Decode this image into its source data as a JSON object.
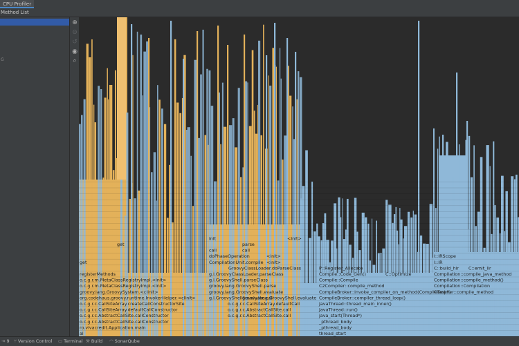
{
  "header": {
    "tab_label": "CPU Profiler",
    "subtab_label": "Method List"
  },
  "left_panel": {
    "mark": "G"
  },
  "toolstrip": {
    "icons": [
      "zoom-in-icon",
      "zoom-out-icon",
      "zoom-reset-icon",
      "eye-icon",
      "search-icon"
    ]
  },
  "colors": {
    "user_code": "#e3b15a",
    "native": "#8fb8d8",
    "background": "#2b2b2b",
    "selection": "#2f65ca"
  },
  "flame": {
    "labels": [
      {
        "text": "get"
      },
      {
        "text": "get"
      },
      {
        "text": "registerMethods"
      },
      {
        "text": "o.c.g.r.m.MetaClassRegistryImpl.<init>"
      },
      {
        "text": "o.c.g.r.m.MetaClassRegistryImpl.<init>"
      },
      {
        "text": "groovy.lang.GroovySystem.<clinit>"
      },
      {
        "text": "org.codehaus.groovy.runtime.InvokerHelper.<clinit>"
      },
      {
        "text": "o.c.g.r.c.CallSiteArray.createCallConstructorSite"
      },
      {
        "text": "o.c.g.r.c.CallSiteArray.defaultCallConstructor"
      },
      {
        "text": "o.c.g.r.c.AbstractCallSite.callConstructor"
      },
      {
        "text": "o.c.g.r.c.AbstractCallSite.callConstructor"
      },
      {
        "text": "ro.vivacredit.Application.main"
      },
      {
        "text": "init"
      },
      {
        "text": "call"
      },
      {
        "text": "parse"
      },
      {
        "text": "call"
      },
      {
        "text": "<init>"
      },
      {
        "text": "doPhaseOperation"
      },
      {
        "text": "<init>"
      },
      {
        "text": "<init>"
      },
      {
        "text": "CompilationUnit.compile"
      },
      {
        "text": "GroovyClassLoader.doParseClass"
      },
      {
        "text": "g.l.GroovyClassLoader.parseClass"
      },
      {
        "text": "g.l.GroovyShell.parseClass"
      },
      {
        "text": "groovy.lang.GroovyShell.parse"
      },
      {
        "text": "groovy.lang.GroovyShell.evaluate"
      },
      {
        "text": "groovy.lang.GroovyShell.evaluate"
      },
      {
        "text": "g.l.GroovyShell$evaluate.call"
      },
      {
        "text": "o.c.g.r.c.CallSiteArray.defaultCall"
      },
      {
        "text": "o.c.g.r.c.AbstractCallSite.call"
      },
      {
        "text": "o.c.g.r.c.AbstractCallSite.call"
      },
      {
        "text": "P::Register_Allocate"
      },
      {
        "text": "Compile::Code_Gen()"
      },
      {
        "text": "C::Optimize"
      },
      {
        "text": "Compile::Compile"
      },
      {
        "text": "C2Compiler::compile_method"
      },
      {
        "text": "CompileBroker::invoke_compiler_on_method(CompileTask*)"
      },
      {
        "text": "CompileBroker::compiler_thread_loop()"
      },
      {
        "text": "JavaThread::thread_main_inner()"
      },
      {
        "text": "JavaThread::run()"
      },
      {
        "text": "java_start(Thread*)"
      },
      {
        "text": "_pthread_body"
      },
      {
        "text": "_pthread_body"
      },
      {
        "text": "thread_start"
      },
      {
        "text": "I::IRScope"
      },
      {
        "text": "I::IR"
      },
      {
        "text": "C::build_hir"
      },
      {
        "text": "C::emit_lir"
      },
      {
        "text": "Compilation::compile_java_method"
      },
      {
        "text": "Compilation::compile_method()"
      },
      {
        "text": "Compilation::Compilation"
      },
      {
        "text": "Compiler::compile_method"
      },
      {
        "text": "al"
      }
    ]
  },
  "statusbar": {
    "items": [
      {
        "icon": "arrow-icon",
        "label": "9"
      },
      {
        "icon": "branch-icon",
        "label": "Version Control"
      },
      {
        "icon": "terminal-icon",
        "label": "Terminal"
      },
      {
        "icon": "hammer-icon",
        "label": "Build"
      },
      {
        "icon": "sonar-icon",
        "label": "SonarQube"
      }
    ]
  }
}
